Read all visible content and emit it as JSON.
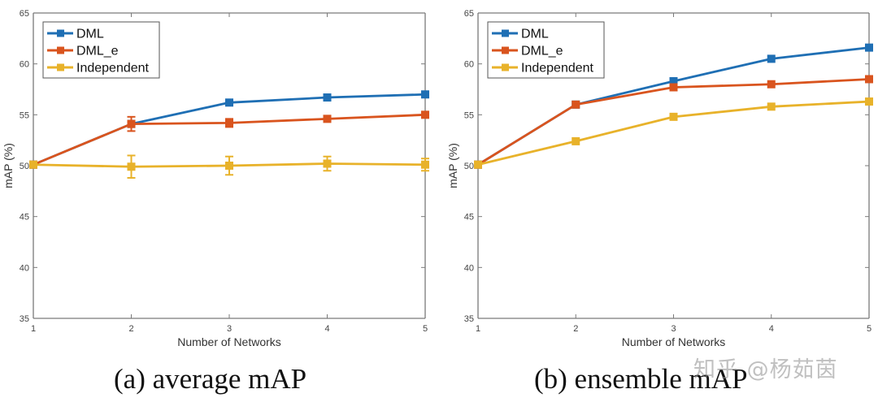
{
  "chart_data": [
    {
      "type": "line",
      "title": "",
      "xlabel": "Number of Networks",
      "ylabel": "mAP (%)",
      "x": [
        1,
        2,
        3,
        4,
        5
      ],
      "xlim": [
        1,
        5
      ],
      "ylim": [
        35,
        65
      ],
      "xticks": [
        "1",
        "2",
        "3",
        "4",
        "5"
      ],
      "yticks": [
        "35",
        "40",
        "45",
        "50",
        "55",
        "60",
        "65"
      ],
      "grid": false,
      "legend": "top-left",
      "series": [
        {
          "name": "DML",
          "color": "#1f6fb4",
          "values": [
            50.1,
            54.1,
            56.2,
            56.7,
            57.0
          ],
          "errors": [
            0,
            0.2,
            0.2,
            0.1,
            0.1
          ]
        },
        {
          "name": "DML_e",
          "color": "#d9541e",
          "values": [
            50.1,
            54.1,
            54.2,
            54.6,
            55.0
          ],
          "errors": [
            0,
            0.7,
            0.4,
            0.2,
            0.1
          ]
        },
        {
          "name": "Independent",
          "color": "#e8b22a",
          "values": [
            50.1,
            49.9,
            50.0,
            50.2,
            50.1
          ],
          "errors": [
            0,
            1.1,
            0.9,
            0.7,
            0.6
          ]
        }
      ],
      "caption": "(a) average mAP"
    },
    {
      "type": "line",
      "title": "",
      "xlabel": "Number of Networks",
      "ylabel": "mAP (%)",
      "x": [
        1,
        2,
        3,
        4,
        5
      ],
      "xlim": [
        1,
        5
      ],
      "ylim": [
        35,
        65
      ],
      "xticks": [
        "1",
        "2",
        "3",
        "4",
        "5"
      ],
      "yticks": [
        "35",
        "40",
        "45",
        "50",
        "55",
        "60",
        "65"
      ],
      "grid": false,
      "legend": "top-left",
      "series": [
        {
          "name": "DML",
          "color": "#1f6fb4",
          "values": [
            50.1,
            56.0,
            58.3,
            60.5,
            61.6
          ]
        },
        {
          "name": "DML_e",
          "color": "#d9541e",
          "values": [
            50.1,
            56.0,
            57.7,
            58.0,
            58.5
          ]
        },
        {
          "name": "Independent",
          "color": "#e8b22a",
          "values": [
            50.1,
            52.4,
            54.8,
            55.8,
            56.3
          ]
        }
      ],
      "caption": "(b) ensemble mAP"
    }
  ],
  "watermark": "知乎 @杨茹茵"
}
